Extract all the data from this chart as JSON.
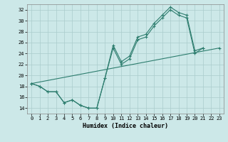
{
  "xlabel": "Humidex (Indice chaleur)",
  "bg_color": "#cce8e8",
  "grid_color": "#aacccc",
  "line_color": "#2d7d6e",
  "xlim": [
    -0.5,
    23.5
  ],
  "ylim": [
    13,
    33
  ],
  "xticks": [
    0,
    1,
    2,
    3,
    4,
    5,
    6,
    7,
    8,
    9,
    10,
    11,
    12,
    13,
    14,
    15,
    16,
    17,
    18,
    19,
    20,
    21,
    22,
    23
  ],
  "yticks": [
    14,
    16,
    18,
    20,
    22,
    24,
    26,
    28,
    30,
    32
  ],
  "line1_x": [
    0,
    1,
    2,
    3,
    4,
    5,
    6,
    7,
    8,
    9,
    10,
    11,
    12,
    13,
    14,
    15,
    16,
    17,
    18,
    19,
    20,
    21
  ],
  "line1_y": [
    18.5,
    18,
    17,
    17,
    15,
    15.5,
    14.5,
    14,
    14,
    19.5,
    25,
    22,
    23,
    26.5,
    27,
    29,
    30.5,
    32,
    31,
    30.5,
    24,
    25
  ],
  "line2_x": [
    0,
    1,
    2,
    3,
    4,
    5,
    6,
    7,
    8,
    9,
    10,
    11,
    12,
    13,
    14,
    15,
    16,
    17,
    18,
    19,
    20,
    21
  ],
  "line2_y": [
    18.5,
    18,
    17,
    17,
    15,
    15.5,
    14.5,
    14,
    14,
    19.5,
    25.5,
    22.5,
    23.5,
    27,
    27.5,
    29.5,
    31,
    32.5,
    31.5,
    31,
    24.5,
    25
  ],
  "line3_x": [
    0,
    23
  ],
  "line3_y": [
    18.5,
    25
  ]
}
